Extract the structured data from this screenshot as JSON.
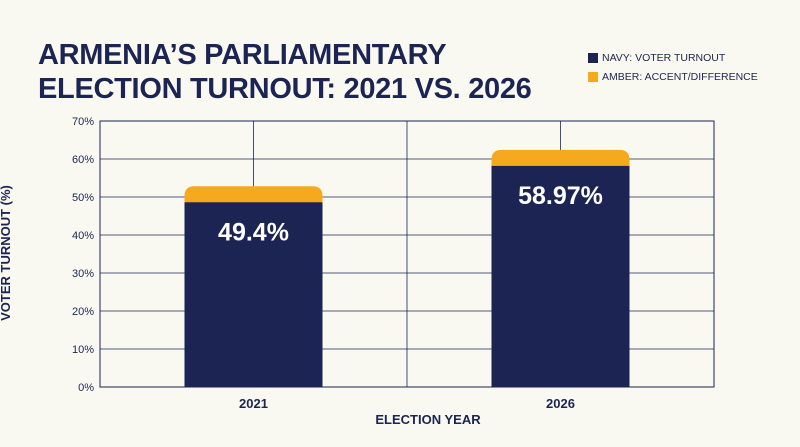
{
  "title_line1": "ARMENIA’S PARLIAMENTARY",
  "title_line2": "ELECTION TURNOUT: 2021 VS. 2026",
  "legend": [
    {
      "label": "NAVY: VOTER TURNOUT",
      "color": "#1b2452"
    },
    {
      "label": "AMBER: ACCENT/DIFFERENCE",
      "color": "#f5a91d"
    }
  ],
  "colors": {
    "navy": "#1b2452",
    "amber": "#f5a91d",
    "grid": "#1b2452"
  },
  "chart_data": {
    "type": "bar",
    "title": "ARMENIA’S PARLIAMENTARY ELECTION TURNOUT: 2021 VS. 2026",
    "xlabel": "ELECTION YEAR",
    "ylabel": "VOTER TURNOUT (%)",
    "categories": [
      "2021",
      "2026"
    ],
    "values": [
      49.4,
      58.97
    ],
    "data_labels": [
      "49.4%",
      "58.97%"
    ],
    "ylim": [
      0,
      70
    ],
    "yticks": [
      0,
      10,
      20,
      30,
      40,
      50,
      60,
      70
    ],
    "ytick_labels": [
      "0%",
      "10%",
      "20%",
      "30%",
      "40%",
      "50%",
      "60%",
      "70%"
    ],
    "grid": true,
    "legend_position": "top-right"
  }
}
